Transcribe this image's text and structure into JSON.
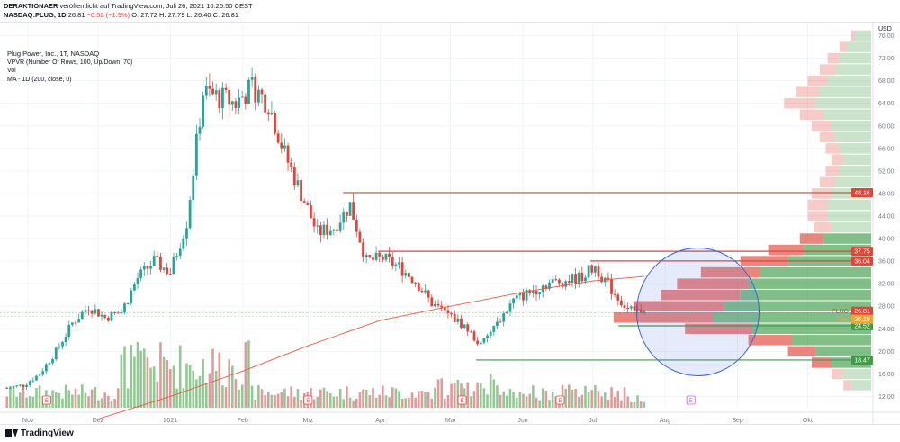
{
  "header": {
    "line1_author": "DERAKTIONAER",
    "line1_rest": "veröffentlicht auf TradingView.com, Juli 26, 2021 10:26:50 CEST",
    "line2_symbol": "NASDAQ:PLUG, 1D",
    "line2_last": "26.81",
    "line2_change": "−0.52 (−1.9%)",
    "line2_ohlc": "O: 27.72 H: 27.79 L: 26.40 C: 26.81"
  },
  "legend": {
    "title": "Plug Power, Inc., 1T, NASDAQ",
    "ind1": "VPVR (Number Of Rows, 100, Up/Down, 70)",
    "ind2": "Vol",
    "ind3": "MA - 1D (200, close, 0)"
  },
  "footer": {
    "brand": "TradingView"
  },
  "chart_data": {
    "type": "candlestick",
    "currency": "USD",
    "ylim": [
      10,
      78
    ],
    "y_ticks": [
      12,
      16,
      20,
      24,
      28,
      32,
      36,
      40,
      44,
      48,
      52,
      56,
      60,
      64,
      68,
      72,
      76
    ],
    "y_tick_labels": [
      "12.00",
      "16.00",
      "20.00",
      "24.00",
      "28.00",
      "32.00",
      "36.00",
      "40.00",
      "44.00",
      "48.00",
      "52.00",
      "56.00",
      "60.00",
      "64.00",
      "68.00",
      "72.00",
      "76.00"
    ],
    "x_labels": [
      "Nov",
      "Dez",
      "2021",
      "Feb",
      "Mrz",
      "Apr",
      "Mai",
      "Jun",
      "Jul",
      "Aug",
      "Sep",
      "Okt"
    ],
    "x_range": [
      "2020-10-20",
      "2021-10-29"
    ],
    "x_label_dates": [
      "2020-11-01",
      "2020-12-01",
      "2021-01-01",
      "2021-02-01",
      "2021-03-01",
      "2021-04-01",
      "2021-05-01",
      "2021-06-01",
      "2021-07-01",
      "2021-08-01",
      "2021-09-01",
      "2021-10-01"
    ],
    "weekly_closes": [
      {
        "d": "2020-10-23",
        "c": 13.5
      },
      {
        "d": "2020-10-30",
        "c": 14.0
      },
      {
        "d": "2020-11-06",
        "c": 16.0
      },
      {
        "d": "2020-11-13",
        "c": 20.0
      },
      {
        "d": "2020-11-20",
        "c": 25.0
      },
      {
        "d": "2020-11-27",
        "c": 28.0
      },
      {
        "d": "2020-12-04",
        "c": 26.0
      },
      {
        "d": "2020-12-11",
        "c": 27.0
      },
      {
        "d": "2020-12-18",
        "c": 33.0
      },
      {
        "d": "2020-12-25",
        "c": 36.0
      },
      {
        "d": "2021-01-01",
        "c": 34.0
      },
      {
        "d": "2021-01-08",
        "c": 43.0
      },
      {
        "d": "2021-01-15",
        "c": 66.0
      },
      {
        "d": "2021-01-22",
        "c": 65.0
      },
      {
        "d": "2021-01-29",
        "c": 64.0
      },
      {
        "d": "2021-02-05",
        "c": 67.0
      },
      {
        "d": "2021-02-12",
        "c": 64.0
      },
      {
        "d": "2021-02-19",
        "c": 55.0
      },
      {
        "d": "2021-02-26",
        "c": 48.0
      },
      {
        "d": "2021-03-05",
        "c": 41.0
      },
      {
        "d": "2021-03-12",
        "c": 42.0
      },
      {
        "d": "2021-03-19",
        "c": 46.0
      },
      {
        "d": "2021-03-26",
        "c": 36.0
      },
      {
        "d": "2021-04-02",
        "c": 36.5
      },
      {
        "d": "2021-04-09",
        "c": 35.0
      },
      {
        "d": "2021-04-16",
        "c": 32.5
      },
      {
        "d": "2021-04-23",
        "c": 28.5
      },
      {
        "d": "2021-04-30",
        "c": 26.5
      },
      {
        "d": "2021-05-07",
        "c": 24.5
      },
      {
        "d": "2021-05-14",
        "c": 21.0
      },
      {
        "d": "2021-05-21",
        "c": 25.0
      },
      {
        "d": "2021-05-28",
        "c": 29.0
      },
      {
        "d": "2021-06-04",
        "c": 30.5
      },
      {
        "d": "2021-06-11",
        "c": 32.0
      },
      {
        "d": "2021-06-18",
        "c": 32.5
      },
      {
        "d": "2021-06-25",
        "c": 33.0
      },
      {
        "d": "2021-07-02",
        "c": 35.0
      },
      {
        "d": "2021-07-09",
        "c": 31.0
      },
      {
        "d": "2021-07-16",
        "c": 27.5
      },
      {
        "d": "2021-07-23",
        "c": 27.3
      }
    ],
    "ma200": [
      {
        "d": "2020-12-01",
        "v": 8
      },
      {
        "d": "2021-01-01",
        "v": 12
      },
      {
        "d": "2021-02-01",
        "v": 16.5
      },
      {
        "d": "2021-03-01",
        "v": 21
      },
      {
        "d": "2021-04-01",
        "v": 25.5
      },
      {
        "d": "2021-05-01",
        "v": 28
      },
      {
        "d": "2021-06-01",
        "v": 30.5
      },
      {
        "d": "2021-07-01",
        "v": 32.5
      },
      {
        "d": "2021-07-23",
        "v": 33.3
      }
    ],
    "levels": [
      {
        "value": 48.16,
        "label": "48.16",
        "color": "#e0453a",
        "start": "2021-03-16"
      },
      {
        "value": 37.75,
        "label": "37.75",
        "color": "#e0453a",
        "start": "2021-03-31"
      },
      {
        "value": 36.04,
        "label": "36.04",
        "color": "#e0453a",
        "start": "2021-06-30"
      },
      {
        "value": 24.52,
        "label": "24.52",
        "color": "#3f9b46",
        "start": "2021-07-12"
      },
      {
        "value": 18.47,
        "label": "18.47",
        "color": "#3f9b46",
        "start": "2021-05-12"
      }
    ],
    "price_tags": [
      {
        "value": 26.81,
        "label": "PLUG",
        "price": "26.81",
        "color": "#e0453a"
      },
      {
        "value": 26.19,
        "label": "Pre",
        "price": "26.19",
        "color": "#f5a623"
      }
    ],
    "vpvr_profile": [
      {
        "p": 76,
        "up": 0.08,
        "down": 0.02
      },
      {
        "p": 74,
        "up": 0.12,
        "down": 0.04
      },
      {
        "p": 72,
        "up": 0.16,
        "down": 0.06
      },
      {
        "p": 70,
        "up": 0.18,
        "down": 0.08
      },
      {
        "p": 68,
        "up": 0.22,
        "down": 0.1
      },
      {
        "p": 66,
        "up": 0.26,
        "down": 0.12
      },
      {
        "p": 64,
        "up": 0.28,
        "down": 0.16
      },
      {
        "p": 62,
        "up": 0.24,
        "down": 0.12
      },
      {
        "p": 60,
        "up": 0.2,
        "down": 0.1
      },
      {
        "p": 58,
        "up": 0.18,
        "down": 0.08
      },
      {
        "p": 56,
        "up": 0.16,
        "down": 0.07
      },
      {
        "p": 54,
        "up": 0.14,
        "down": 0.06
      },
      {
        "p": 52,
        "up": 0.16,
        "down": 0.07
      },
      {
        "p": 50,
        "up": 0.18,
        "down": 0.08
      },
      {
        "p": 48,
        "up": 0.2,
        "down": 0.1
      },
      {
        "p": 46,
        "up": 0.22,
        "down": 0.1
      },
      {
        "p": 44,
        "up": 0.22,
        "down": 0.1
      },
      {
        "p": 42,
        "up": 0.2,
        "down": 0.09
      },
      {
        "p": 40,
        "up": 0.24,
        "down": 0.12
      },
      {
        "p": 38,
        "up": 0.34,
        "down": 0.18
      },
      {
        "p": 36,
        "up": 0.42,
        "down": 0.24
      },
      {
        "p": 34,
        "up": 0.56,
        "down": 0.3
      },
      {
        "p": 32,
        "up": 0.62,
        "down": 0.36
      },
      {
        "p": 30,
        "up": 0.66,
        "down": 0.4
      },
      {
        "p": 28,
        "up": 0.74,
        "down": 0.46
      },
      {
        "p": 26,
        "up": 0.8,
        "down": 0.5
      },
      {
        "p": 24,
        "up": 0.6,
        "down": 0.34
      },
      {
        "p": 22,
        "up": 0.4,
        "down": 0.22
      },
      {
        "p": 20,
        "up": 0.28,
        "down": 0.14
      },
      {
        "p": 18,
        "up": 0.2,
        "down": 0.1
      },
      {
        "p": 16,
        "up": 0.14,
        "down": 0.06
      },
      {
        "p": 14,
        "up": 0.1,
        "down": 0.04
      }
    ],
    "annotation_circle": {
      "center_date": "2021-08-15",
      "center_price": 27,
      "color": "#3b63d8",
      "fill": "rgba(80,120,230,0.15)"
    },
    "event_markers": [
      "2020-11-09",
      "2021-03-01",
      "2021-05-06",
      "2021-06-17",
      "2021-08-12"
    ],
    "colors": {
      "up": "#26a69a",
      "up_vol": "#7fbf7f",
      "down": "#e0453a",
      "down_vol": "#d98a8a",
      "ma": "#e35b45",
      "grid": "#f0f3fa"
    }
  }
}
